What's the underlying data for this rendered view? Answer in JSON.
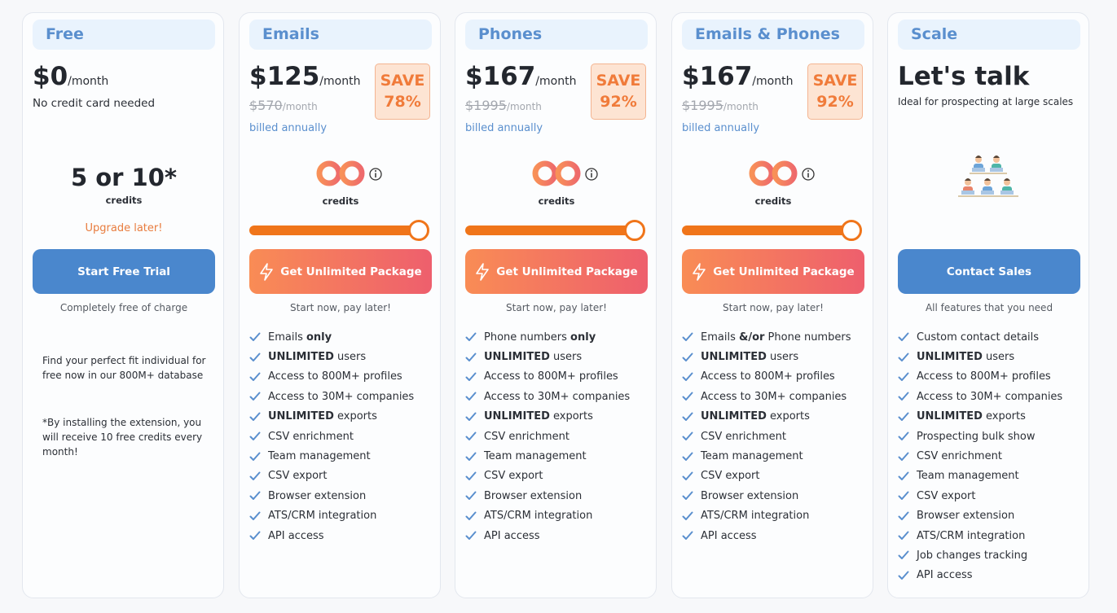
{
  "plans": [
    {
      "name": "Free",
      "price": "$0",
      "period": "/month",
      "note": "No credit card needed",
      "credits": "5 or 10*",
      "credits_label": "credits",
      "upgrade": "Upgrade later!",
      "button": "Start Free Trial",
      "button_note": "Completely free of charge",
      "description": "Find your perfect fit individual for free now in our 800M+ database",
      "footnote": "*By installing the extension, you will receive 10 free credits every month!"
    },
    {
      "name": "Emails",
      "price": "$125",
      "period": "/month",
      "old_price": "$570",
      "old_period": "/month",
      "billing": "billed annually",
      "save": "SAVE",
      "save_pct": "78%",
      "credits_label": "credits",
      "button": "Get Unlimited Package",
      "button_note": "Start now, pay later!",
      "features": [
        [
          {
            "text": "Emails "
          },
          {
            "text": "only",
            "bold": true
          }
        ],
        [
          {
            "text": "UNLIMITED",
            "bold": true
          },
          {
            "text": " users"
          }
        ],
        [
          {
            "text": "Access to 800M+ profiles"
          }
        ],
        [
          {
            "text": "Access to 30M+ companies"
          }
        ],
        [
          {
            "text": "UNLIMITED",
            "bold": true
          },
          {
            "text": " exports"
          }
        ],
        [
          {
            "text": "CSV enrichment"
          }
        ],
        [
          {
            "text": "Team management"
          }
        ],
        [
          {
            "text": "CSV export"
          }
        ],
        [
          {
            "text": "Browser extension"
          }
        ],
        [
          {
            "text": "ATS/CRM integration"
          }
        ],
        [
          {
            "text": "API access"
          }
        ]
      ]
    },
    {
      "name": "Phones",
      "price": "$167",
      "period": "/month",
      "old_price": "$1995",
      "old_period": "/month",
      "billing": "billed annually",
      "save": "SAVE",
      "save_pct": "92%",
      "credits_label": "credits",
      "button": "Get Unlimited Package",
      "button_note": "Start now, pay later!",
      "features": [
        [
          {
            "text": "Phone numbers "
          },
          {
            "text": "only",
            "bold": true
          }
        ],
        [
          {
            "text": "UNLIMITED",
            "bold": true
          },
          {
            "text": " users"
          }
        ],
        [
          {
            "text": "Access to 800M+ profiles"
          }
        ],
        [
          {
            "text": "Access to 30M+ companies"
          }
        ],
        [
          {
            "text": "UNLIMITED",
            "bold": true
          },
          {
            "text": " exports"
          }
        ],
        [
          {
            "text": "CSV enrichment"
          }
        ],
        [
          {
            "text": "Team management"
          }
        ],
        [
          {
            "text": "CSV export"
          }
        ],
        [
          {
            "text": "Browser extension"
          }
        ],
        [
          {
            "text": "ATS/CRM integration"
          }
        ],
        [
          {
            "text": "API access"
          }
        ]
      ]
    },
    {
      "name": "Emails & Phones",
      "price": "$167",
      "period": "/month",
      "old_price": "$1995",
      "old_period": "/month",
      "billing": "billed annually",
      "save": "SAVE",
      "save_pct": "92%",
      "credits_label": "credits",
      "button": "Get Unlimited Package",
      "button_note": "Start now, pay later!",
      "features": [
        [
          {
            "text": "Emails "
          },
          {
            "text": "&/or",
            "bold": true
          },
          {
            "text": " Phone numbers"
          }
        ],
        [
          {
            "text": "UNLIMITED",
            "bold": true
          },
          {
            "text": " users"
          }
        ],
        [
          {
            "text": "Access to 800M+ profiles"
          }
        ],
        [
          {
            "text": "Access to 30M+ companies"
          }
        ],
        [
          {
            "text": "UNLIMITED",
            "bold": true
          },
          {
            "text": " exports"
          }
        ],
        [
          {
            "text": "CSV enrichment"
          }
        ],
        [
          {
            "text": "Team management"
          }
        ],
        [
          {
            "text": "CSV export"
          }
        ],
        [
          {
            "text": "Browser extension"
          }
        ],
        [
          {
            "text": "ATS/CRM integration"
          }
        ],
        [
          {
            "text": "API access"
          }
        ]
      ]
    },
    {
      "name": "Scale",
      "price": "Let's talk",
      "note": "Ideal for prospecting at large scales",
      "button": "Contact Sales",
      "button_note": "All features that you need",
      "features": [
        [
          {
            "text": "Custom contact details"
          }
        ],
        [
          {
            "text": "UNLIMITED",
            "bold": true
          },
          {
            "text": " users"
          }
        ],
        [
          {
            "text": "Access to 800M+ profiles"
          }
        ],
        [
          {
            "text": "Access to 30M+ companies"
          }
        ],
        [
          {
            "text": "UNLIMITED",
            "bold": true
          },
          {
            "text": " exports"
          }
        ],
        [
          {
            "text": "Prospecting bulk show"
          }
        ],
        [
          {
            "text": "CSV enrichment"
          }
        ],
        [
          {
            "text": "Team management"
          }
        ],
        [
          {
            "text": "CSV export"
          }
        ],
        [
          {
            "text": "Browser extension"
          }
        ],
        [
          {
            "text": "ATS/CRM integration"
          }
        ],
        [
          {
            "text": "Job changes tracking"
          }
        ],
        [
          {
            "text": "API access"
          }
        ]
      ]
    }
  ]
}
